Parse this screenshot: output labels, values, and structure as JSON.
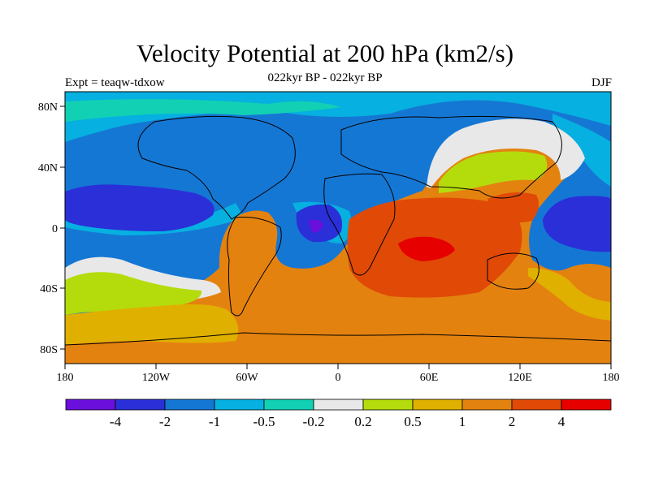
{
  "plot": {
    "title": "Velocity Potential at 200 hPa (km2/s)",
    "subtitle": "022kyr BP - 022kyr BP",
    "left_label": "Expt = teaqw-tdxow",
    "right_label": "DJF"
  },
  "axes": {
    "lon_ticks": [
      "180",
      "120W",
      "60W",
      "0",
      "60E",
      "120E",
      "180"
    ],
    "lat_ticks": [
      "80N",
      "40N",
      "0",
      "40S",
      "80S"
    ]
  },
  "colorbar": {
    "labels": [
      "-4",
      "-2",
      "-1",
      "-0.5",
      "-0.2",
      "0.2",
      "0.5",
      "1",
      "2",
      "4"
    ],
    "colors": [
      "#6a0fdc",
      "#2a2fd8",
      "#1577d4",
      "#06b0e0",
      "#12d0b4",
      "#e8e8e8",
      "#b4dc0c",
      "#e0b000",
      "#e48210",
      "#e04a06",
      "#e60000"
    ]
  }
}
